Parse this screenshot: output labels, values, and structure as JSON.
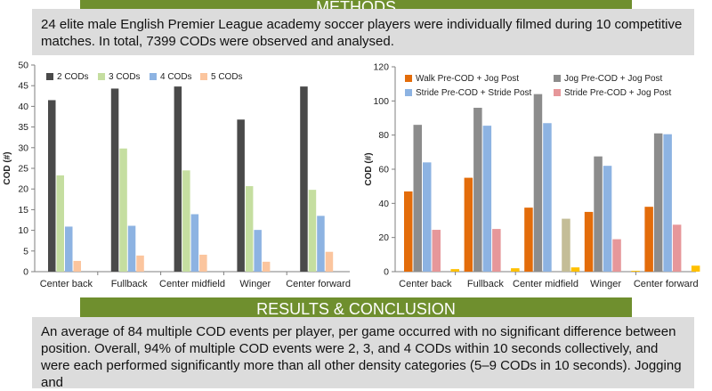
{
  "methods": {
    "heading": "METHODS",
    "text": "24 elite male English Premier League academy soccer players were individually filmed during 10 competitive matches. In total, 7399 CODs were observed and analysed."
  },
  "results": {
    "heading": "RESULTS & CONCLUSION",
    "text": "An average of 84 multiple COD events per player, per game occurred with no significant difference between position. Overall, 94% of multiple COD events were 2, 3, and 4 CODs within 10 seconds collectively, and were each performed significantly more than all other density categories (5–9 CODs in 10 seconds). Jogging and"
  },
  "chart_data": [
    {
      "type": "bar",
      "categories": [
        "Center back",
        "Fullback",
        "Center midfield",
        "Winger",
        "Center forward"
      ],
      "ylabel": "COD (#)",
      "ylim": [
        0,
        50
      ],
      "yticks": [
        0,
        5,
        10,
        15,
        20,
        25,
        30,
        35,
        40,
        45,
        50
      ],
      "legend_position": "top-left",
      "grid": false,
      "series": [
        {
          "name": "2 CODs",
          "color": "#4a4a4a",
          "values": [
            41.5,
            44.3,
            44.8,
            36.8,
            44.8
          ]
        },
        {
          "name": "3 CODs",
          "color": "#c5dea0",
          "values": [
            23.3,
            29.8,
            24.5,
            20.7,
            19.8
          ]
        },
        {
          "name": "4 CODs",
          "color": "#8db3e2",
          "values": [
            10.9,
            11.1,
            13.9,
            10.1,
            13.5
          ]
        },
        {
          "name": "5 CODs",
          "color": "#fbc59e",
          "values": [
            2.6,
            3.9,
            4.1,
            2.4,
            4.8
          ]
        }
      ]
    },
    {
      "type": "bar",
      "categories": [
        "Center back",
        "Fullback",
        "Center midfield",
        "Winger",
        "Center forward"
      ],
      "ylabel": "COD (#)",
      "ylim": [
        0,
        120
      ],
      "yticks": [
        0,
        20,
        40,
        60,
        80,
        100,
        120
      ],
      "legend_position": "top",
      "grid": false,
      "series": [
        {
          "name": "Walk Pre-COD + Jog Post",
          "color": "#e36c0a",
          "values": [
            47,
            55,
            37.5,
            35,
            38
          ]
        },
        {
          "name": "Jog Pre-COD + Jog Post",
          "color": "#8c8c8c",
          "values": [
            86,
            96,
            104,
            67.5,
            81
          ]
        },
        {
          "name": "Stride Pre-COD + Stride Post",
          "color": "#8db3e2",
          "values": [
            64,
            85.5,
            87,
            62,
            80.5
          ]
        },
        {
          "name": "Stride Pre-COD + Jog Post",
          "color": "#e6979a",
          "values": [
            24.5,
            25,
            null,
            19,
            27.5
          ]
        },
        {
          "name": "",
          "color": "#c4bd97",
          "values": [
            null,
            null,
            31,
            null,
            null
          ]
        },
        {
          "name": "",
          "color": "#ffc000",
          "values": [
            1.5,
            2,
            2.5,
            0.5,
            3.5
          ]
        }
      ]
    }
  ]
}
